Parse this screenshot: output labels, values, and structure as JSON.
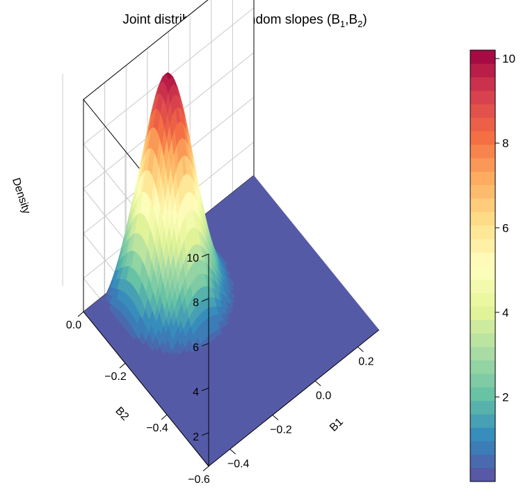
{
  "chart_data": {
    "type": "surface3d",
    "title": "Joint distribution of random slopes (B",
    "title_sub1": "1",
    "title_sep": ",B",
    "title_sub2": "2",
    "title_close": ")",
    "xlabel": "B1",
    "ylabel": "B2",
    "zlabel": "Density",
    "xlim": [
      -0.5,
      0.3
    ],
    "ylim": [
      -0.6,
      0.0
    ],
    "zlim": [
      0.5,
      10.0
    ],
    "x_ticks": [
      -0.4,
      -0.2,
      0.0,
      0.2
    ],
    "y_ticks": [
      -0.6,
      -0.4,
      -0.2,
      0.0
    ],
    "z_ticks": [
      2,
      4,
      6,
      8,
      10
    ],
    "x_tick_labels": [
      "−0.4",
      "−0.2",
      "0.0",
      "0.2"
    ],
    "y_tick_labels": [
      "−0.6",
      "−0.4",
      "−0.2",
      "0.0"
    ],
    "z_tick_labels": [
      "2",
      "4",
      "6",
      "8",
      "10"
    ],
    "peak": {
      "x": -0.2,
      "y": -0.1,
      "z": 10.0
    },
    "sd": {
      "x": 0.09,
      "y": 0.085
    },
    "colorbar": {
      "range": [
        0,
        10.2
      ],
      "ticks": [
        2,
        4,
        6,
        8,
        10
      ],
      "tick_labels": [
        "2",
        "4",
        "6",
        "8",
        "10"
      ],
      "palette": [
        "#5E4FA2",
        "#3288BD",
        "#66C2A5",
        "#ABDDA4",
        "#E6F598",
        "#FFFFBF",
        "#FEE08B",
        "#FDAE61",
        "#F46D43",
        "#D53E4F",
        "#9E0142"
      ],
      "bands": 32
    },
    "grid": true,
    "legend": "right"
  }
}
